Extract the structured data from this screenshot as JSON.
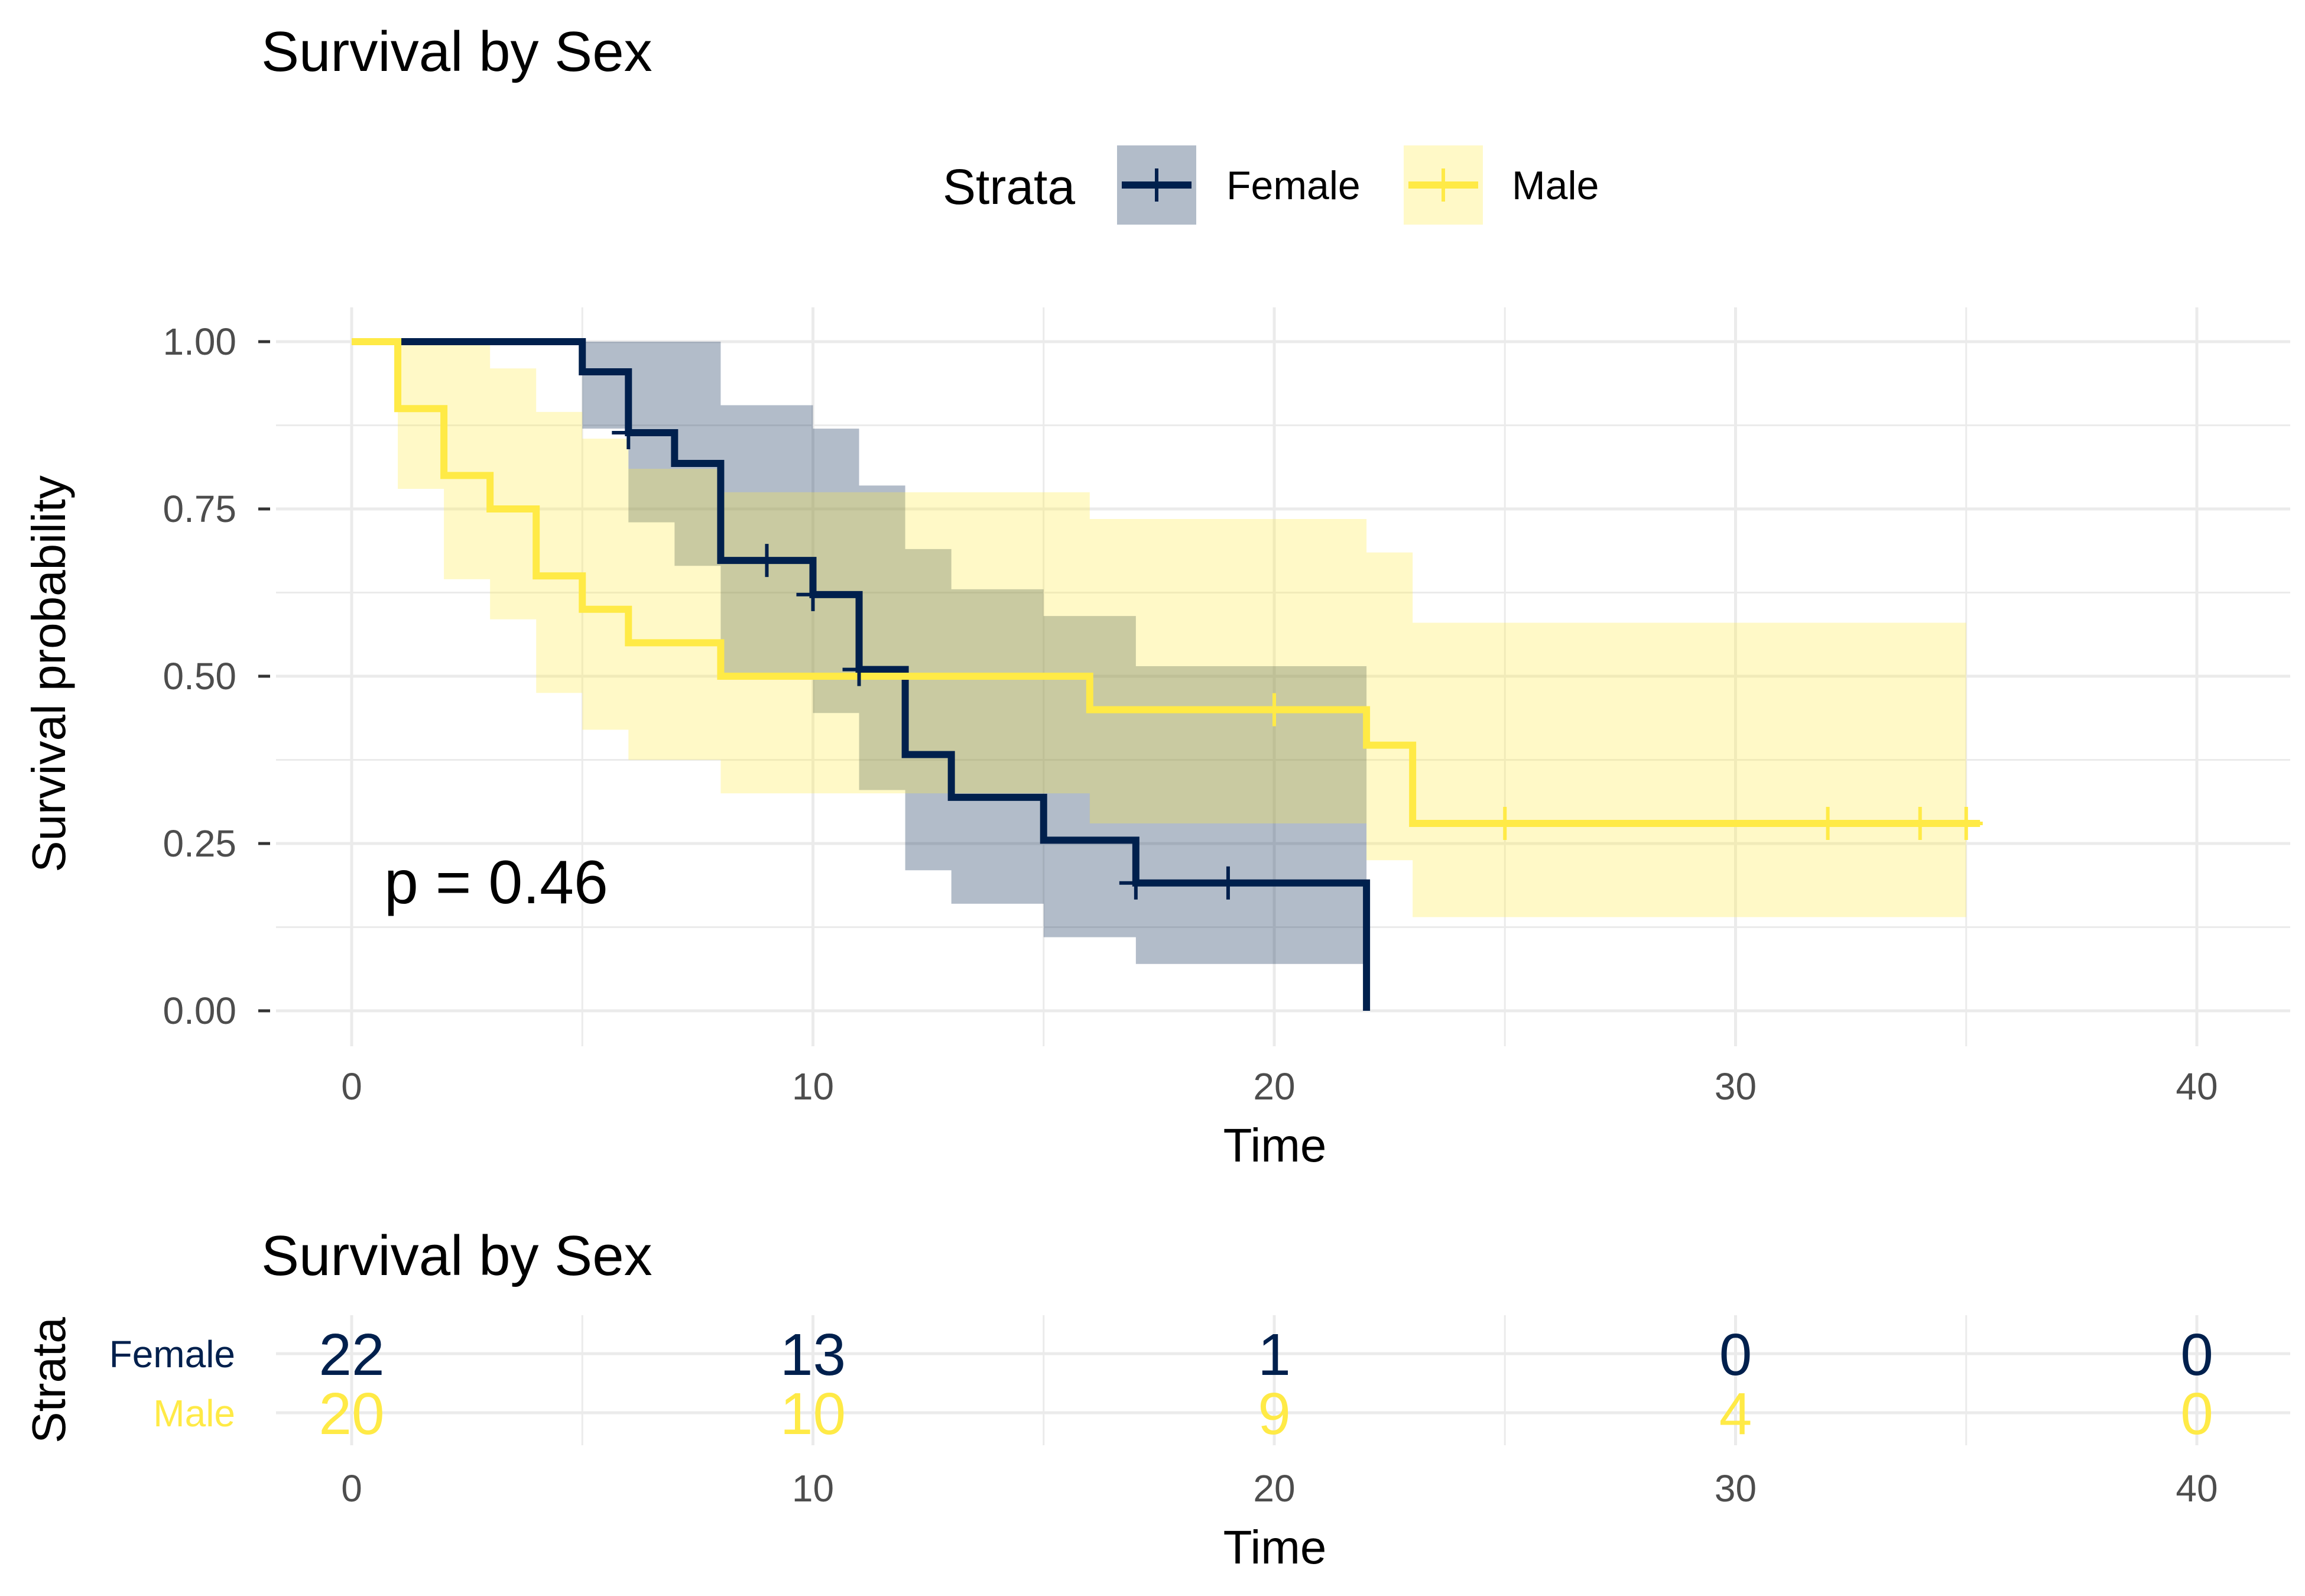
{
  "chart_data": [
    {
      "type": "line",
      "title": "Survival by Sex",
      "xlabel": "Time",
      "ylabel": "Survival probability",
      "xlim": [
        0,
        40
      ],
      "ylim": [
        0,
        1
      ],
      "x_ticks": [
        0,
        10,
        20,
        30,
        40
      ],
      "y_ticks": [
        "0.00",
        "0.25",
        "0.50",
        "0.75",
        "1.00"
      ],
      "grid": true,
      "legend": {
        "title": "Strata",
        "position": "top"
      },
      "annotation": "p = 0.46",
      "series": [
        {
          "name": "Female",
          "color": "#00204d",
          "steps": [
            [
              0,
              1.0
            ],
            [
              5,
              0.955
            ],
            [
              6,
              0.864
            ],
            [
              7,
              0.818
            ],
            [
              8,
              0.673
            ],
            [
              10,
              0.622
            ],
            [
              11,
              0.51
            ],
            [
              12,
              0.383
            ],
            [
              13,
              0.319
            ],
            [
              15,
              0.255
            ],
            [
              17,
              0.191
            ],
            [
              22,
              0.0
            ]
          ],
          "end": 22,
          "censored": [
            [
              6,
              0.864
            ],
            [
              9,
              0.673
            ],
            [
              10,
              0.622
            ],
            [
              11,
              0.51
            ],
            [
              17,
              0.191
            ],
            [
              19,
              0.191
            ]
          ],
          "ci": [
            [
              0,
              1.0,
              1.0
            ],
            [
              5,
              0.87,
              1.0
            ],
            [
              6,
              0.73,
              1.0
            ],
            [
              7,
              0.665,
              1.0
            ],
            [
              8,
              0.5,
              0.905
            ],
            [
              10,
              0.445,
              0.87
            ],
            [
              11,
              0.33,
              0.785
            ],
            [
              12,
              0.21,
              0.69
            ],
            [
              13,
              0.16,
              0.63
            ],
            [
              15,
              0.11,
              0.59
            ],
            [
              17,
              0.07,
              0.515
            ],
            [
              22,
              0.0,
              0.0
            ]
          ],
          "ci_end": 22
        },
        {
          "name": "Male",
          "color": "#ffea46",
          "steps": [
            [
              0,
              1.0
            ],
            [
              1,
              0.9
            ],
            [
              2,
              0.8
            ],
            [
              3,
              0.75
            ],
            [
              4,
              0.65
            ],
            [
              5,
              0.6
            ],
            [
              6,
              0.55
            ],
            [
              8,
              0.5
            ],
            [
              16,
              0.45
            ],
            [
              22,
              0.397
            ],
            [
              23,
              0.28
            ]
          ],
          "end": 35.3,
          "censored": [
            [
              20,
              0.45
            ],
            [
              25,
              0.28
            ],
            [
              32,
              0.28
            ],
            [
              34,
              0.28
            ],
            [
              35,
              0.28
            ]
          ],
          "ci": [
            [
              0,
              1.0,
              1.0
            ],
            [
              1,
              0.78,
              1.0
            ],
            [
              2,
              0.645,
              1.0
            ],
            [
              3,
              0.585,
              0.96
            ],
            [
              4,
              0.475,
              0.895
            ],
            [
              5,
              0.42,
              0.855
            ],
            [
              6,
              0.375,
              0.81
            ],
            [
              8,
              0.325,
              0.775
            ],
            [
              16,
              0.28,
              0.735
            ],
            [
              22,
              0.225,
              0.685
            ],
            [
              23,
              0.14,
              0.58
            ]
          ],
          "ci_end": 35
        }
      ]
    },
    {
      "type": "table",
      "title": "Survival by Sex",
      "xlabel": "Time",
      "ylabel": "Strata",
      "x_ticks": [
        0,
        10,
        20,
        30,
        40
      ],
      "rows": [
        {
          "name": "Female",
          "color": "#00204d",
          "values": [
            22,
            13,
            1,
            0,
            0
          ]
        },
        {
          "name": "Male",
          "color": "#ffea46",
          "values": [
            20,
            10,
            9,
            4,
            0
          ]
        }
      ]
    }
  ]
}
